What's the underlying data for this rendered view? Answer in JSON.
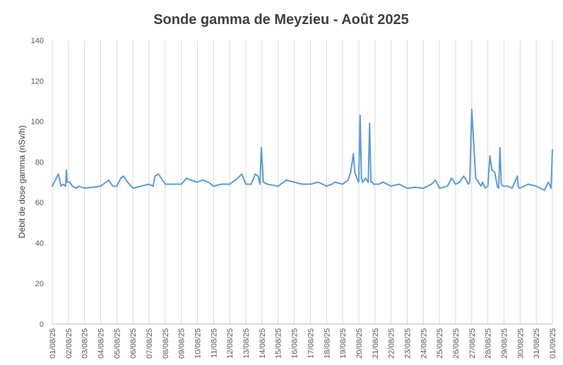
{
  "chart_data": {
    "type": "line",
    "title": "Sonde gamma de Meyzieu - Août 2025",
    "xlabel": "",
    "ylabel": "Débit de dose gamma (nSv/h)",
    "ylim": [
      0,
      140
    ],
    "yticks": [
      0,
      20,
      40,
      60,
      80,
      100,
      120,
      140
    ],
    "xlim": [
      "01/08/25",
      "01/09/25"
    ],
    "x_tick_labels": [
      "01/08/25",
      "02/08/25",
      "03/08/25",
      "04/08/25",
      "05/08/25",
      "06/08/25",
      "07/08/25",
      "08/08/25",
      "09/08/25",
      "10/08/25",
      "11/08/25",
      "12/08/25",
      "13/08/25",
      "14/08/25",
      "15/08/25",
      "16/08/25",
      "17/08/25",
      "18/08/25",
      "19/08/25",
      "20/08/25",
      "21/08/25",
      "22/08/25",
      "23/08/25",
      "24/08/25",
      "25/08/25",
      "26/08/25",
      "27/08/25",
      "28/08/25",
      "29/08/25",
      "30/08/25",
      "31/08/25",
      "01/09/25"
    ],
    "grid": "vertical",
    "line_color": "#5b9bd5",
    "series": [
      {
        "x": [
          "01/08/25 00:00",
          "01/08/25 06:00",
          "01/08/25 09:00",
          "01/08/25 13:00",
          "01/08/25 16:00",
          "01/08/25 20:00",
          "01/08/25 21:00",
          "01/08/25 22:00",
          "02/08/25 02:00",
          "02/08/25 06:00",
          "02/08/25 12:00",
          "02/08/25 15:00",
          "03/08/25 00:00",
          "03/08/25 12:00",
          "04/08/25 00:00",
          "04/08/25 08:00",
          "04/08/25 12:00",
          "04/08/25 18:00",
          "05/08/25 00:00",
          "05/08/25 06:00",
          "05/08/25 10:00",
          "05/08/25 16:00",
          "06/08/25 00:00",
          "06/08/25 12:00",
          "07/08/25 00:00",
          "07/08/25 06:00",
          "07/08/25 09:00",
          "07/08/25 14:00",
          "08/08/25 00:00",
          "08/08/25 12:00",
          "09/08/25 00:00",
          "09/08/25 08:00",
          "09/08/25 14:00",
          "10/08/25 00:00",
          "10/08/25 08:00",
          "10/08/25 16:00",
          "11/08/25 00:00",
          "11/08/25 12:00",
          "12/08/25 00:00",
          "12/08/25 12:00",
          "12/08/25 18:00",
          "13/08/25 00:00",
          "13/08/25 08:00",
          "13/08/25 14:00",
          "13/08/25 18:00",
          "13/08/25 21:00",
          "13/08/25 23:00",
          "14/08/25 02:00",
          "14/08/25 08:00",
          "15/08/25 00:00",
          "15/08/25 12:00",
          "16/08/25 00:00",
          "16/08/25 12:00",
          "17/08/25 00:00",
          "17/08/25 12:00",
          "18/08/25 00:00",
          "18/08/25 08:00",
          "18/08/25 12:00",
          "19/08/25 00:00",
          "19/08/25 08:00",
          "19/08/25 12:00",
          "19/08/25 16:00",
          "19/08/25 18:00",
          "19/08/25 21:00",
          "20/08/25 00:00",
          "20/08/25 02:00",
          "20/08/25 04:00",
          "20/08/25 06:00",
          "20/08/25 10:00",
          "20/08/25 14:00",
          "20/08/25 16:00",
          "20/08/25 18:00",
          "20/08/25 20:00",
          "20/08/25 22:00",
          "21/08/25 06:00",
          "21/08/25 12:00",
          "22/08/25 00:00",
          "22/08/25 12:00",
          "23/08/25 00:00",
          "23/08/25 12:00",
          "24/08/25 00:00",
          "24/08/25 12:00",
          "24/08/25 18:00",
          "25/08/25 00:00",
          "25/08/25 12:00",
          "25/08/25 18:00",
          "26/08/25 00:00",
          "26/08/25 06:00",
          "26/08/25 12:00",
          "26/08/25 16:00",
          "26/08/25 19:00",
          "26/08/25 21:00",
          "27/08/25 00:00",
          "27/08/25 06:00",
          "27/08/25 12:00",
          "27/08/25 14:00",
          "27/08/25 16:00",
          "27/08/25 20:00",
          "28/08/25 00:00",
          "28/08/25 03:00",
          "28/08/25 06:00",
          "28/08/25 10:00",
          "28/08/25 14:00",
          "28/08/25 16:00",
          "28/08/25 18:00",
          "28/08/25 20:00",
          "28/08/25 23:00",
          "29/08/25 06:00",
          "29/08/25 12:00",
          "29/08/25 20:00",
          "29/08/25 21:00",
          "29/08/25 23:00",
          "30/08/25 06:00",
          "30/08/25 12:00",
          "31/08/25 00:00",
          "31/08/25 12:00",
          "31/08/25 18:00",
          "31/08/25 22:00",
          "01/09/25 00:00"
        ],
        "y": [
          68,
          72,
          74,
          68,
          69,
          68,
          76,
          70,
          70,
          68,
          67,
          68,
          67,
          67.5,
          68,
          70,
          71,
          68,
          68,
          72,
          73,
          70,
          67,
          68,
          69,
          68,
          73,
          74,
          69,
          69,
          69,
          72,
          71,
          70,
          71,
          70,
          68,
          69,
          69,
          72,
          74,
          69,
          69,
          74,
          73,
          69,
          87,
          70,
          69,
          68,
          71,
          70,
          69,
          69,
          70,
          68,
          69,
          70,
          69,
          71,
          75,
          84,
          75,
          72,
          70,
          103,
          72,
          70,
          72,
          70,
          99,
          70,
          70,
          69,
          69,
          70,
          68,
          69,
          67,
          67.5,
          67,
          69,
          71,
          67,
          68,
          72,
          69,
          70,
          73,
          71,
          69,
          70,
          106,
          72,
          69,
          68,
          70,
          67,
          68,
          83,
          76,
          75,
          68,
          67,
          87,
          69,
          68,
          68,
          67,
          73,
          68,
          67,
          68,
          69,
          68,
          66,
          70,
          67,
          86
        ]
      }
    ]
  }
}
